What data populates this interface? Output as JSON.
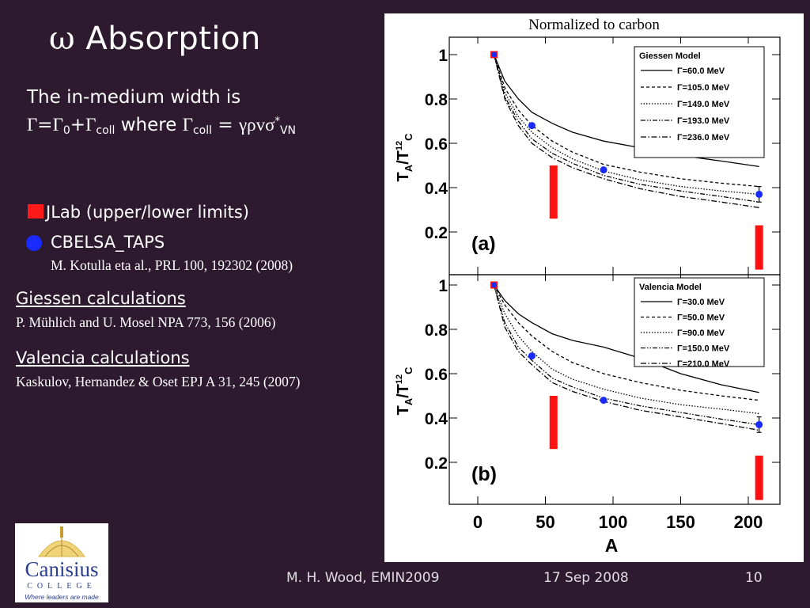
{
  "slide": {
    "title_symbol": "ω",
    "title_text": "Absorption",
    "width_line1": "The in-medium width is",
    "formula": {
      "g1": "Γ",
      "eq": "=",
      "g2": "Γ",
      "sub0": "0",
      "plus": "+",
      "g3": "Γ",
      "sub_coll": "coll",
      "where": " where ",
      "g4": "Γ",
      "sub_coll2": "coll",
      "eq2": " = ",
      "grsv": "γρvσ",
      "star": "*",
      "sub_vn": "VN"
    },
    "legend_jlab": "JLab (upper/lower limits)",
    "legend_cbelsa": "CBELSA_TAPS",
    "cbelsa_ref": "M. Kotulla eta al., PRL 100,  192302 (2008)",
    "giessen_heading": "Giessen calculations",
    "giessen_ref": "P. Mühlich and U. Mosel NPA 773, 156 (2006)",
    "valencia_heading": "Valencia calculations",
    "valencia_ref": "Kaskulov, Hernandez & Oset EPJ A 31, 245 (2007)",
    "footer_author": "M. H. Wood, EMIN2009",
    "footer_date": "17 Sep 2008",
    "footer_page": "10"
  },
  "logo": {
    "name": "Canisius",
    "sub": "COLLEGE",
    "tagline": "Where leaders are made"
  },
  "figure": {
    "caption": "Normalized to carbon",
    "y_label_main": "T",
    "y_label_sub_a": "A",
    "y_label_slash": "/T",
    "y_label_sup": "12",
    "y_label_sub_c": "C",
    "x_label": "A",
    "x_ticks": [
      "0",
      "50",
      "100",
      "150",
      "200"
    ],
    "y_ticks": [
      "1",
      "0.8",
      "0.6",
      "0.4",
      "0.2"
    ]
  },
  "chart_data": [
    {
      "type": "line",
      "panel_label": "(a)",
      "legend_title": "Giessen Model",
      "legend_position": "top-right",
      "xlim": [
        -20,
        215
      ],
      "ylim": [
        0,
        1.06
      ],
      "series": [
        {
          "name": "Γ=60.0 MeV",
          "dash": "solid",
          "x": [
            12,
            20,
            30,
            40,
            55,
            70,
            93,
            120,
            150,
            180,
            208
          ],
          "y": [
            1.0,
            0.88,
            0.8,
            0.74,
            0.69,
            0.65,
            0.61,
            0.58,
            0.545,
            0.52,
            0.495
          ]
        },
        {
          "name": "Γ=105.0 MeV",
          "dash": "dash",
          "x": [
            12,
            20,
            30,
            40,
            55,
            70,
            93,
            120,
            150,
            180,
            208
          ],
          "y": [
            1.0,
            0.85,
            0.75,
            0.68,
            0.61,
            0.56,
            0.505,
            0.47,
            0.44,
            0.42,
            0.405
          ]
        },
        {
          "name": "Γ=149.0 MeV",
          "dash": "dot",
          "x": [
            12,
            20,
            30,
            40,
            55,
            70,
            93,
            120,
            150,
            180,
            208
          ],
          "y": [
            1.0,
            0.83,
            0.72,
            0.65,
            0.58,
            0.53,
            0.475,
            0.435,
            0.405,
            0.385,
            0.37
          ]
        },
        {
          "name": "Γ=193.0 MeV",
          "dash": "dashdotdot",
          "x": [
            12,
            20,
            30,
            40,
            55,
            70,
            93,
            120,
            150,
            180,
            208
          ],
          "y": [
            1.0,
            0.81,
            0.7,
            0.62,
            0.555,
            0.51,
            0.455,
            0.415,
            0.385,
            0.36,
            0.335
          ]
        },
        {
          "name": "Γ=236.0 MeV",
          "dash": "dashdot",
          "x": [
            12,
            20,
            30,
            40,
            55,
            70,
            93,
            120,
            150,
            180,
            208
          ],
          "y": [
            1.0,
            0.8,
            0.68,
            0.6,
            0.535,
            0.49,
            0.44,
            0.395,
            0.36,
            0.335,
            0.31
          ]
        }
      ],
      "cbelsa_taps": {
        "x": [
          12,
          40,
          93,
          208
        ],
        "y": [
          1.0,
          0.68,
          0.48,
          0.37
        ],
        "err": [
          0,
          0,
          0,
          0.035
        ]
      },
      "jlab_limits": [
        {
          "x": 56,
          "low": 0.26,
          "high": 0.5
        },
        {
          "x": 208,
          "low": 0.03,
          "high": 0.23
        }
      ]
    },
    {
      "type": "line",
      "panel_label": "(b)",
      "legend_title": "Valencia Model",
      "legend_position": "top-right",
      "xlim": [
        -20,
        215
      ],
      "ylim": [
        0,
        1.06
      ],
      "series": [
        {
          "name": "Γ=30.0 MeV",
          "dash": "solid",
          "x": [
            12,
            20,
            30,
            40,
            55,
            70,
            93,
            120,
            150,
            180,
            208
          ],
          "y": [
            1.0,
            0.93,
            0.87,
            0.83,
            0.78,
            0.75,
            0.72,
            0.67,
            0.6,
            0.55,
            0.515
          ]
        },
        {
          "name": "Γ=50.0 MeV",
          "dash": "dash",
          "x": [
            12,
            20,
            30,
            40,
            55,
            70,
            93,
            120,
            150,
            180,
            208
          ],
          "y": [
            1.0,
            0.91,
            0.83,
            0.77,
            0.7,
            0.65,
            0.6,
            0.56,
            0.525,
            0.5,
            0.48
          ]
        },
        {
          "name": "Γ=90.0 MeV",
          "dash": "dot",
          "x": [
            12,
            20,
            30,
            40,
            55,
            70,
            93,
            120,
            150,
            180,
            208
          ],
          "y": [
            1.0,
            0.87,
            0.77,
            0.7,
            0.62,
            0.575,
            0.53,
            0.49,
            0.46,
            0.44,
            0.42
          ]
        },
        {
          "name": "Γ=150.0 MeV",
          "dash": "dashdotdot",
          "x": [
            12,
            20,
            30,
            40,
            55,
            70,
            93,
            120,
            150,
            180,
            208
          ],
          "y": [
            1.0,
            0.83,
            0.72,
            0.66,
            0.58,
            0.54,
            0.49,
            0.455,
            0.425,
            0.395,
            0.37
          ]
        },
        {
          "name": "Γ=210.0 MeV",
          "dash": "dashdot",
          "x": [
            12,
            20,
            30,
            40,
            55,
            70,
            93,
            120,
            150,
            180,
            208
          ],
          "y": [
            1.0,
            0.81,
            0.7,
            0.64,
            0.56,
            0.52,
            0.475,
            0.435,
            0.405,
            0.375,
            0.345
          ]
        }
      ],
      "cbelsa_taps": {
        "x": [
          12,
          40,
          93,
          208
        ],
        "y": [
          1.0,
          0.68,
          0.48,
          0.37
        ],
        "err": [
          0,
          0,
          0,
          0.035
        ]
      },
      "jlab_limits": [
        {
          "x": 56,
          "low": 0.26,
          "high": 0.5
        },
        {
          "x": 208,
          "low": 0.03,
          "high": 0.23
        }
      ]
    }
  ]
}
